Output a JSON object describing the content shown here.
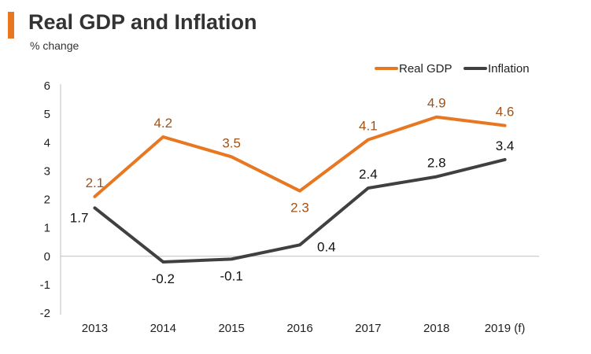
{
  "header": {
    "title": "Real GDP and Inflation",
    "subtitle": "% change",
    "accent_color": "#e87722"
  },
  "chart_data": {
    "type": "line",
    "title": "Real GDP and Inflation",
    "ylabel": "% change",
    "xlabel": "",
    "categories": [
      "2013",
      "2014",
      "2015",
      "2016",
      "2017",
      "2018",
      "2019 (f)"
    ],
    "ylim": [
      -2,
      6
    ],
    "yticks": [
      -2,
      -1,
      0,
      1,
      2,
      3,
      4,
      5,
      6
    ],
    "grid": false,
    "legend_position": "top-right",
    "series": [
      {
        "name": "Real GDP",
        "values": [
          2.1,
          4.2,
          3.5,
          2.3,
          4.1,
          4.9,
          4.6
        ],
        "color": "#e87722",
        "label_color": "#a0521a",
        "labels": [
          "2.1",
          "4.2",
          "3.5",
          "2.3",
          "4.1",
          "4.9",
          "4.6"
        ]
      },
      {
        "name": "Inflation",
        "values": [
          1.7,
          -0.2,
          -0.1,
          0.4,
          2.4,
          2.8,
          3.4
        ],
        "color": "#404040",
        "label_color": "#111111",
        "labels": [
          "1.7",
          "-0.2",
          "-0.1",
          "0.4",
          "2.4",
          "2.8",
          "3.4"
        ]
      }
    ]
  }
}
